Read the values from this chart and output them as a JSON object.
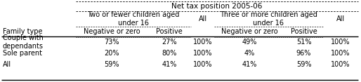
{
  "title": "Net tax position 2005-06",
  "family_type_label": "Family type",
  "group1_label": "Two or fewer children aged\nunder 16",
  "group2_label": "Three or more children aged\nunder 16",
  "all_label": "All",
  "neg_label": "Negative or zero",
  "pos_label": "Positive",
  "rows": [
    [
      "Couple with\ndependants",
      "73%",
      "27%",
      "100%",
      "49%",
      "51%",
      "100%"
    ],
    [
      "Sole parent",
      "20%",
      "80%",
      "100%",
      "4%",
      "96%",
      "100%"
    ],
    [
      "All",
      "59%",
      "41%",
      "100%",
      "41%",
      "59%",
      "100%"
    ]
  ],
  "bg_color": "#ffffff",
  "line_color": "#000000",
  "font_size": 7.0,
  "font_family": "DejaVu Sans"
}
